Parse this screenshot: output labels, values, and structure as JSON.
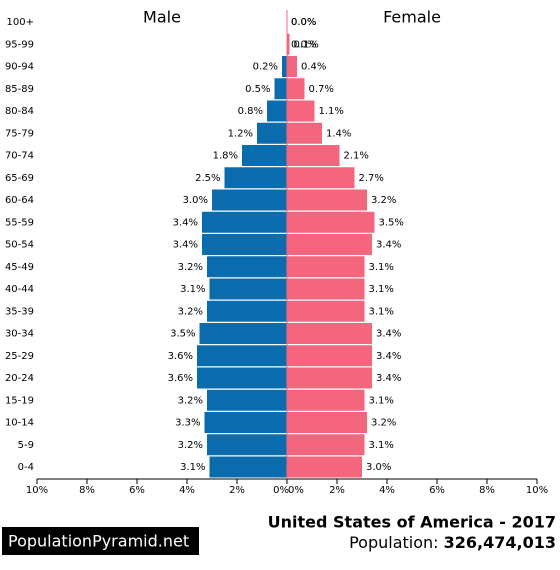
{
  "chart_data": {
    "type": "pyramid",
    "title": "United States of America - 2017",
    "population_label": "Population:",
    "population": "326,474,013",
    "brand": "PopulationPyramid.net",
    "categories": [
      "100+",
      "95-99",
      "90-94",
      "85-89",
      "80-84",
      "75-79",
      "70-74",
      "65-69",
      "60-64",
      "55-59",
      "50-54",
      "45-49",
      "40-44",
      "35-39",
      "30-34",
      "25-29",
      "20-24",
      "15-19",
      "10-14",
      "5-9",
      "0-4"
    ],
    "series": [
      {
        "name": "Male",
        "color": "#0a6bad",
        "values": [
          0.0,
          0.0,
          0.2,
          0.5,
          0.8,
          1.2,
          1.8,
          2.5,
          3.0,
          3.4,
          3.4,
          3.2,
          3.1,
          3.2,
          3.5,
          3.6,
          3.6,
          3.2,
          3.3,
          3.2,
          3.1
        ],
        "value_labels": [
          "0.0%",
          "0.0%",
          "0.2%",
          "0.5%",
          "0.8%",
          "1.2%",
          "1.8%",
          "2.5%",
          "3.0%",
          "3.4%",
          "3.4%",
          "3.2%",
          "3.1%",
          "3.2%",
          "3.5%",
          "3.6%",
          "3.6%",
          "3.2%",
          "3.3%",
          "3.2%",
          "3.1%"
        ],
        "xlim": [
          10,
          0
        ],
        "xticks": [
          {
            "value": 10,
            "label": "10%"
          },
          {
            "value": 8,
            "label": "8%"
          },
          {
            "value": 6,
            "label": "6%"
          },
          {
            "value": 4,
            "label": "4%"
          },
          {
            "value": 2,
            "label": "2%"
          },
          {
            "value": 0,
            "label": "0%"
          }
        ]
      },
      {
        "name": "Female",
        "color": "#f4667d",
        "values": [
          0.0,
          0.1,
          0.4,
          0.7,
          1.1,
          1.4,
          2.1,
          2.7,
          3.2,
          3.5,
          3.4,
          3.1,
          3.1,
          3.1,
          3.4,
          3.4,
          3.4,
          3.1,
          3.2,
          3.1,
          3.0
        ],
        "value_labels": [
          "0.0%",
          "0.1%",
          "0.4%",
          "0.7%",
          "1.1%",
          "1.4%",
          "2.1%",
          "2.7%",
          "3.2%",
          "3.5%",
          "3.4%",
          "3.1%",
          "3.1%",
          "3.1%",
          "3.4%",
          "3.4%",
          "3.4%",
          "3.1%",
          "3.2%",
          "3.1%",
          "3.0%"
        ],
        "xlim": [
          0,
          10
        ],
        "xticks": [
          {
            "value": 0,
            "label": "0%"
          },
          {
            "value": 2,
            "label": "2%"
          },
          {
            "value": 4,
            "label": "4%"
          },
          {
            "value": 6,
            "label": "6%"
          },
          {
            "value": 8,
            "label": "8%"
          },
          {
            "value": 10,
            "label": "10%"
          }
        ]
      }
    ]
  }
}
